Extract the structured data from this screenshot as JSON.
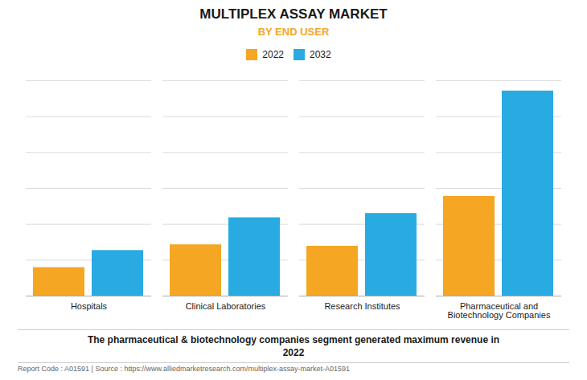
{
  "chart_data": {
    "type": "bar",
    "title": "MULTIPLEX ASSAY MARKET",
    "subtitle": "BY END USER",
    "categories": [
      "Hospitals",
      "Clinical Laboratories",
      "Research Institutes",
      "Pharmaceutical and\nBiotechnology Companies"
    ],
    "series": [
      {
        "name": "2022",
        "color": "#F5A623",
        "values": [
          1.0,
          1.8,
          1.75,
          3.5
        ]
      },
      {
        "name": "2032",
        "color": "#29ABE2",
        "values": [
          1.6,
          2.75,
          2.9,
          7.2
        ]
      }
    ],
    "ylim": [
      0,
      7.56
    ],
    "yticks": [
      0,
      1.26,
      2.52,
      3.78,
      5.04,
      6.3,
      7.56
    ],
    "grid": true,
    "legend": "top",
    "tick_labels": "x",
    "annotations": [
      "The pharmaceutical & biotechnology companies segment generated maximum revenue in\n2022",
      "Report Code : A01591  |  Source : https://www.alliedmarketresearch.com/multiplex-assay-market-A01591"
    ]
  }
}
